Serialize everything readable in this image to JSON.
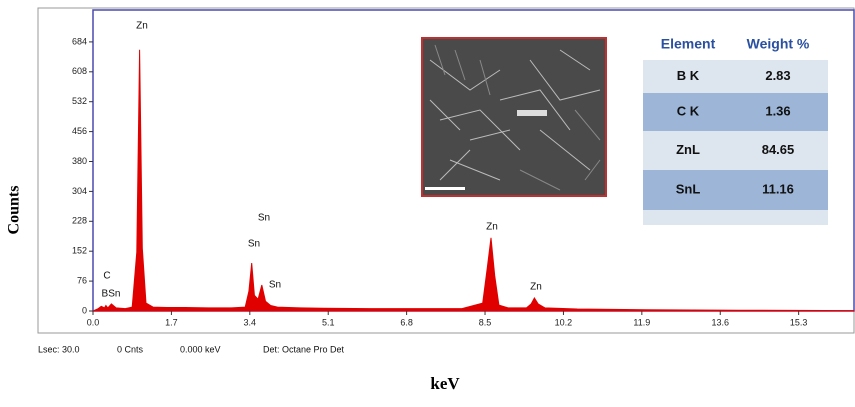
{
  "chart_data": {
    "type": "area",
    "x": [
      0,
      0.1,
      0.18,
      0.25,
      0.28,
      0.32,
      0.4,
      0.5,
      0.7,
      0.85,
      0.95,
      1.01,
      1.07,
      1.15,
      1.3,
      1.6,
      2.0,
      2.5,
      3.0,
      3.3,
      3.38,
      3.44,
      3.5,
      3.58,
      3.66,
      3.74,
      3.85,
      4.0,
      4.5,
      5.0,
      6.0,
      7.0,
      8.0,
      8.45,
      8.55,
      8.63,
      8.71,
      8.8,
      9.0,
      9.4,
      9.5,
      9.57,
      9.65,
      9.8,
      10.5,
      12,
      14,
      16.5
    ],
    "values": [
      0,
      5,
      12,
      8,
      14,
      8,
      18,
      8,
      6,
      10,
      150,
      664,
      160,
      20,
      10,
      9,
      9,
      8,
      8,
      10,
      50,
      122,
      40,
      30,
      66,
      25,
      14,
      10,
      8,
      7,
      6,
      6,
      6,
      20,
      110,
      186,
      90,
      15,
      8,
      8,
      18,
      33,
      18,
      8,
      5,
      3,
      2,
      1
    ],
    "color": "#e00000",
    "xlim": [
      0,
      16.5
    ],
    "ylim": [
      0,
      760
    ],
    "xticks": [
      {
        "value": 0,
        "label": "0.0"
      },
      1.7,
      3.4,
      5.1,
      6.8,
      8.5,
      10.2,
      11.9,
      13.6,
      15.3
    ],
    "yticks": [
      0,
      76,
      152,
      228,
      304,
      380,
      456,
      532,
      608,
      684
    ],
    "xlabel": "keV",
    "ylabel": "Counts",
    "annotations": [
      "Zn",
      "C",
      "BSn",
      "Sn",
      "Sn",
      "Sn",
      "Zn",
      "Zn"
    ]
  },
  "table": {
    "header": [
      "Element",
      "Weight %"
    ],
    "rows": [
      [
        "B K",
        "2.83"
      ],
      [
        "C K",
        "1.36"
      ],
      [
        "ZnL",
        "84.65"
      ],
      [
        "SnL",
        "11.16"
      ]
    ]
  },
  "status_bar": [
    "Lsec: 30.0",
    "0 Cnts",
    "0.000 keV",
    "Det: Octane Pro Det"
  ]
}
